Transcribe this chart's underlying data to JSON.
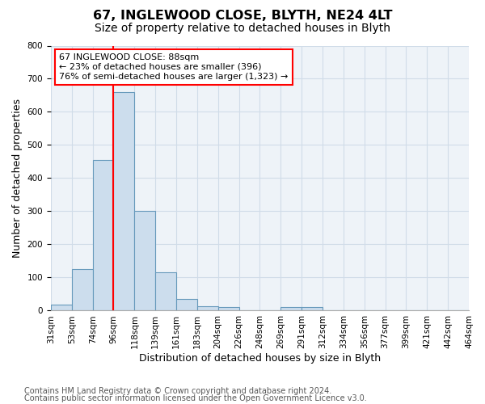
{
  "title": "67, INGLEWOOD CLOSE, BLYTH, NE24 4LT",
  "subtitle": "Size of property relative to detached houses in Blyth",
  "xlabel": "Distribution of detached houses by size in Blyth",
  "ylabel": "Number of detached properties",
  "footnote1": "Contains HM Land Registry data © Crown copyright and database right 2024.",
  "footnote2": "Contains public sector information licensed under the Open Government Licence v3.0.",
  "bin_labels": [
    "31sqm",
    "53sqm",
    "74sqm",
    "96sqm",
    "118sqm",
    "139sqm",
    "161sqm",
    "183sqm",
    "204sqm",
    "226sqm",
    "248sqm",
    "269sqm",
    "291sqm",
    "312sqm",
    "334sqm",
    "356sqm",
    "377sqm",
    "399sqm",
    "421sqm",
    "442sqm",
    "464sqm"
  ],
  "values": [
    18,
    125,
    455,
    660,
    300,
    115,
    35,
    14,
    10,
    0,
    0,
    10,
    10,
    0,
    0,
    0,
    0,
    0,
    0,
    0
  ],
  "bar_color": "#ccdded",
  "bar_edge_color": "#6699bb",
  "bar_linewidth": 0.8,
  "bg_color": "#eef3f8",
  "grid_color": "#d0dce8",
  "vline_x": 3,
  "vline_color": "red",
  "annotation_text": "67 INGLEWOOD CLOSE: 88sqm\n← 23% of detached houses are smaller (396)\n76% of semi-detached houses are larger (1,323) →",
  "annotation_box_color": "white",
  "annotation_box_edge": "red",
  "ylim": [
    0,
    800
  ],
  "yticks": [
    0,
    100,
    200,
    300,
    400,
    500,
    600,
    700,
    800
  ],
  "title_fontsize": 11.5,
  "subtitle_fontsize": 10,
  "tick_fontsize": 7.5,
  "ylabel_fontsize": 9,
  "xlabel_fontsize": 9,
  "annotation_fontsize": 8,
  "footnote_fontsize": 7
}
